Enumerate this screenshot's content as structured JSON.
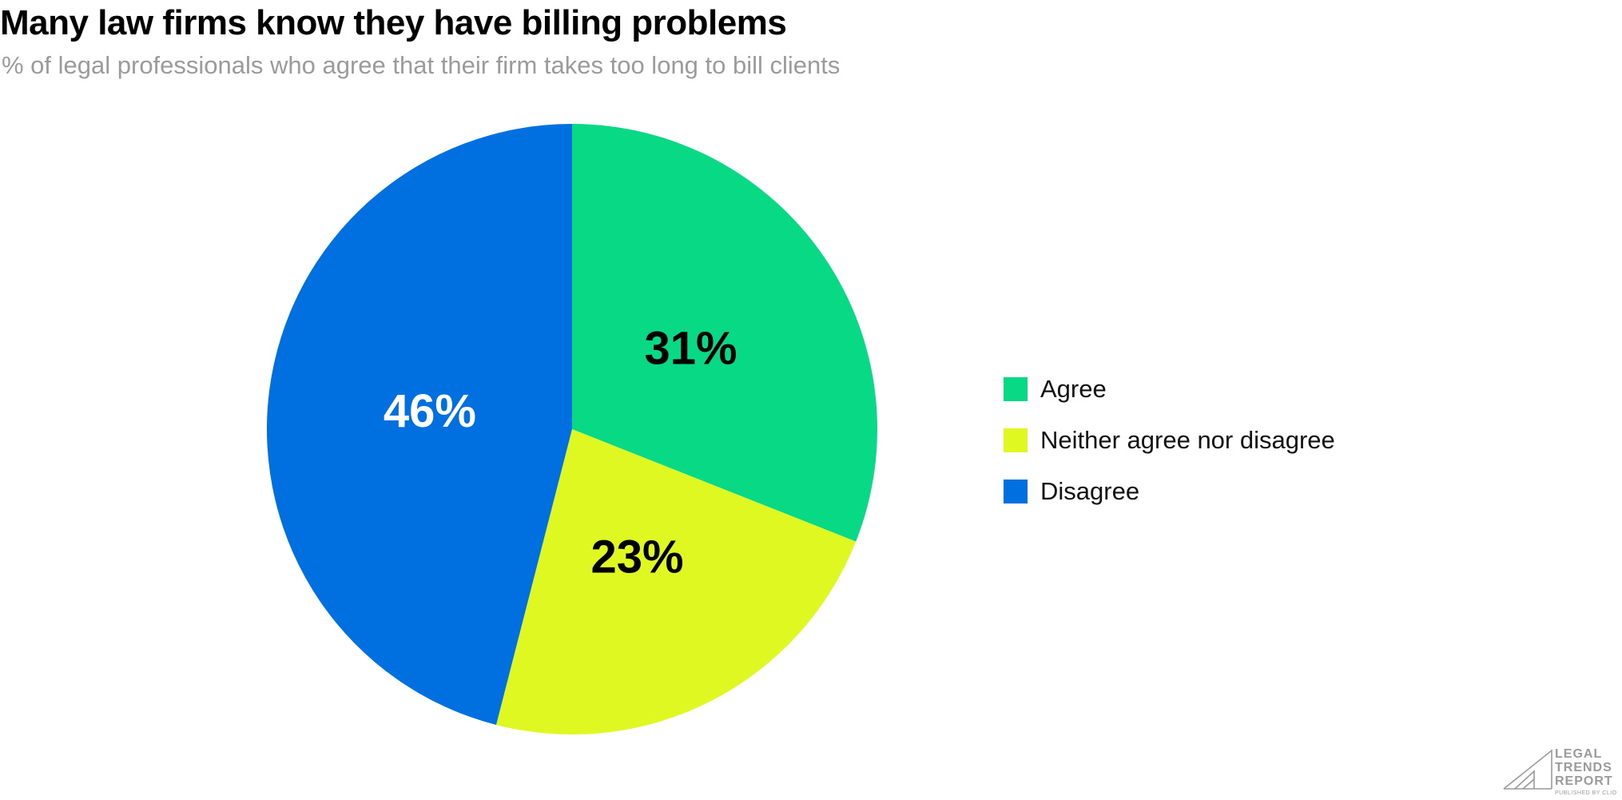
{
  "header": {
    "title": "Many law firms know they have billing problems",
    "subtitle": "% of legal professionals who agree that their firm takes too long to bill clients"
  },
  "chart_data": {
    "type": "pie",
    "title": "Many law firms know they have billing problems",
    "subtitle": "% of legal professionals who agree that their firm takes too long to bill clients",
    "slices": [
      {
        "label": "Agree",
        "value": 31,
        "display": "31%",
        "color": "#07d984",
        "text_color": "#000000"
      },
      {
        "label": "Neither agree nor disagree",
        "value": 23,
        "display": "23%",
        "color": "#e0f821",
        "text_color": "#000000"
      },
      {
        "label": "Disagree",
        "value": 46,
        "display": "46%",
        "color": "#0070e0",
        "text_color": "#ffffff"
      }
    ],
    "legend_placement": "right",
    "start_angle": "12 o'clock",
    "direction": "clockwise"
  },
  "logo": {
    "line1": "LEGAL",
    "line2": "TRENDS",
    "line3": "REPORT",
    "tagline": "PUBLISHED BY CLIO"
  }
}
